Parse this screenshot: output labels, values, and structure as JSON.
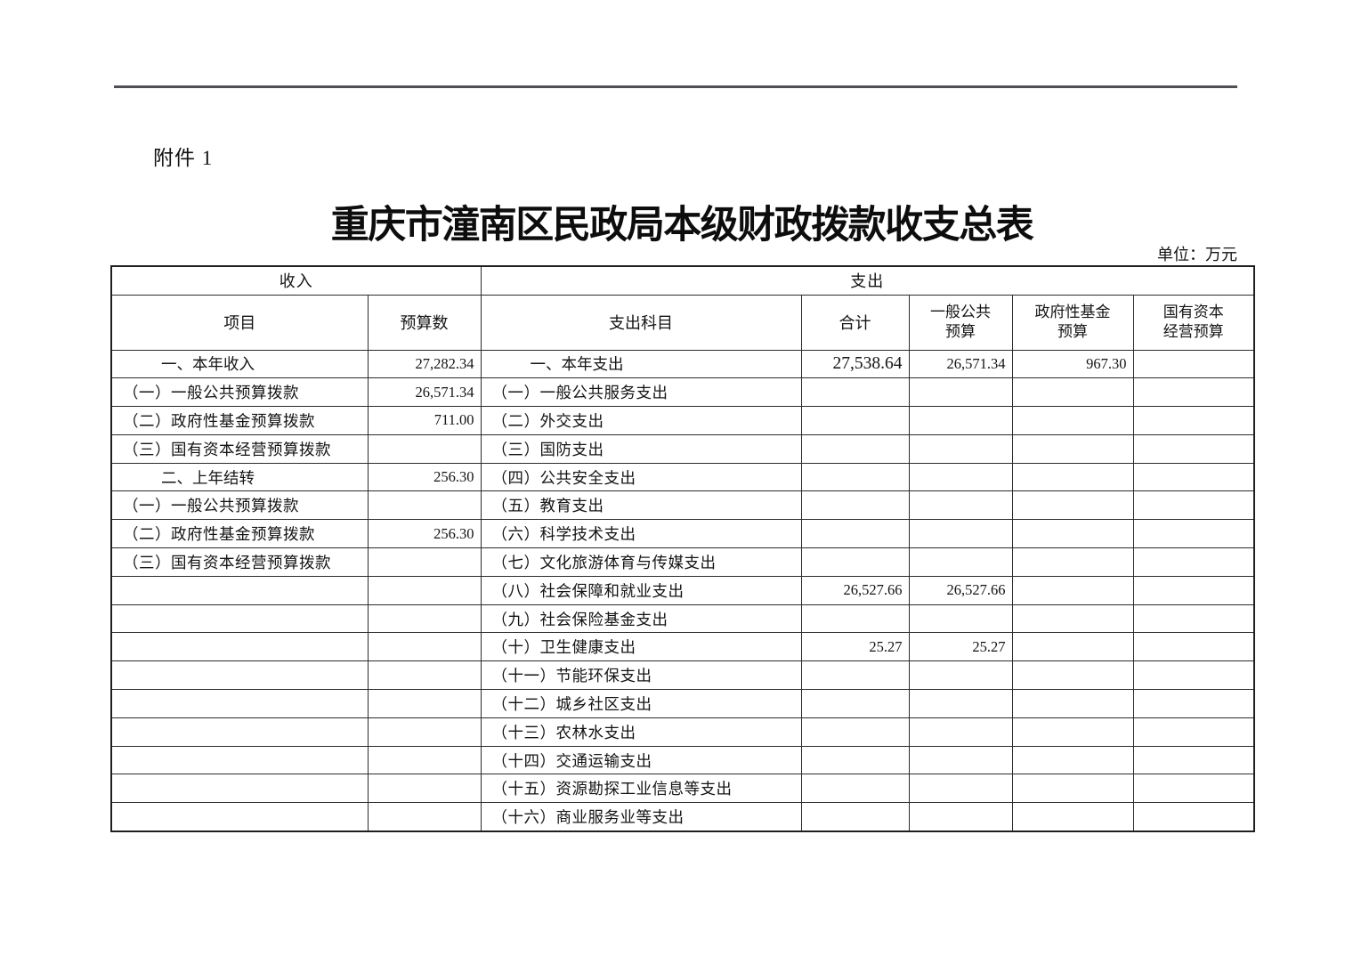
{
  "page": {
    "attachment_label": "附件 1",
    "title": "重庆市潼南区民政局本级财政拨款收支总表",
    "unit_label": "单位：万元"
  },
  "table": {
    "section_headers": {
      "income": "收入",
      "expense": "支出"
    },
    "column_headers": {
      "item": "项目",
      "budget": "预算数",
      "expense_item": "支出科目",
      "total": "合计",
      "general_public_line1": "一般公共",
      "general_public_line2": "预算",
      "gov_fund_line1": "政府性基金",
      "gov_fund_line2": "预算",
      "state_capital_line1": "国有资本",
      "state_capital_line2": "经营预算"
    },
    "rows": [
      {
        "income_item": "一、本年收入",
        "income_budget": "27,282.34",
        "expense_item": "一、本年支出",
        "total": "27,538.64",
        "general_public": "26,571.34",
        "gov_fund": "967.30",
        "state_capital": ""
      },
      {
        "income_item": "（一）一般公共预算拨款",
        "income_budget": "26,571.34",
        "expense_item": "（一）一般公共服务支出",
        "total": "",
        "general_public": "",
        "gov_fund": "",
        "state_capital": ""
      },
      {
        "income_item": "（二）政府性基金预算拨款",
        "income_budget": "711.00",
        "expense_item": "（二）外交支出",
        "total": "",
        "general_public": "",
        "gov_fund": "",
        "state_capital": ""
      },
      {
        "income_item": "（三）国有资本经营预算拨款",
        "income_budget": "",
        "expense_item": "（三）国防支出",
        "total": "",
        "general_public": "",
        "gov_fund": "",
        "state_capital": ""
      },
      {
        "income_item": "二、上年结转",
        "income_budget": "256.30",
        "expense_item": "（四）公共安全支出",
        "total": "",
        "general_public": "",
        "gov_fund": "",
        "state_capital": ""
      },
      {
        "income_item": "（一）一般公共预算拨款",
        "income_budget": "",
        "expense_item": "（五）教育支出",
        "total": "",
        "general_public": "",
        "gov_fund": "",
        "state_capital": ""
      },
      {
        "income_item": "（二）政府性基金预算拨款",
        "income_budget": "256.30",
        "expense_item": "（六）科学技术支出",
        "total": "",
        "general_public": "",
        "gov_fund": "",
        "state_capital": ""
      },
      {
        "income_item": "（三）国有资本经营预算拨款",
        "income_budget": "",
        "expense_item": "（七）文化旅游体育与传媒支出",
        "total": "",
        "general_public": "",
        "gov_fund": "",
        "state_capital": ""
      },
      {
        "income_item": "",
        "income_budget": "",
        "expense_item": "（八）社会保障和就业支出",
        "total": "26,527.66",
        "general_public": "26,527.66",
        "gov_fund": "",
        "state_capital": ""
      },
      {
        "income_item": "",
        "income_budget": "",
        "expense_item": "（九）社会保险基金支出",
        "total": "",
        "general_public": "",
        "gov_fund": "",
        "state_capital": ""
      },
      {
        "income_item": "",
        "income_budget": "",
        "expense_item": "（十）卫生健康支出",
        "total": "25.27",
        "general_public": "25.27",
        "gov_fund": "",
        "state_capital": ""
      },
      {
        "income_item": "",
        "income_budget": "",
        "expense_item": "（十一）节能环保支出",
        "total": "",
        "general_public": "",
        "gov_fund": "",
        "state_capital": ""
      },
      {
        "income_item": "",
        "income_budget": "",
        "expense_item": "（十二）城乡社区支出",
        "total": "",
        "general_public": "",
        "gov_fund": "",
        "state_capital": ""
      },
      {
        "income_item": "",
        "income_budget": "",
        "expense_item": "（十三）农林水支出",
        "total": "",
        "general_public": "",
        "gov_fund": "",
        "state_capital": ""
      },
      {
        "income_item": "",
        "income_budget": "",
        "expense_item": "（十四）交通运输支出",
        "total": "",
        "general_public": "",
        "gov_fund": "",
        "state_capital": ""
      },
      {
        "income_item": "",
        "income_budget": "",
        "expense_item": "（十五）资源勘探工业信息等支出",
        "total": "",
        "general_public": "",
        "gov_fund": "",
        "state_capital": ""
      },
      {
        "income_item": "",
        "income_budget": "",
        "expense_item": "（十六）商业服务业等支出",
        "total": "",
        "general_public": "",
        "gov_fund": "",
        "state_capital": ""
      }
    ]
  }
}
